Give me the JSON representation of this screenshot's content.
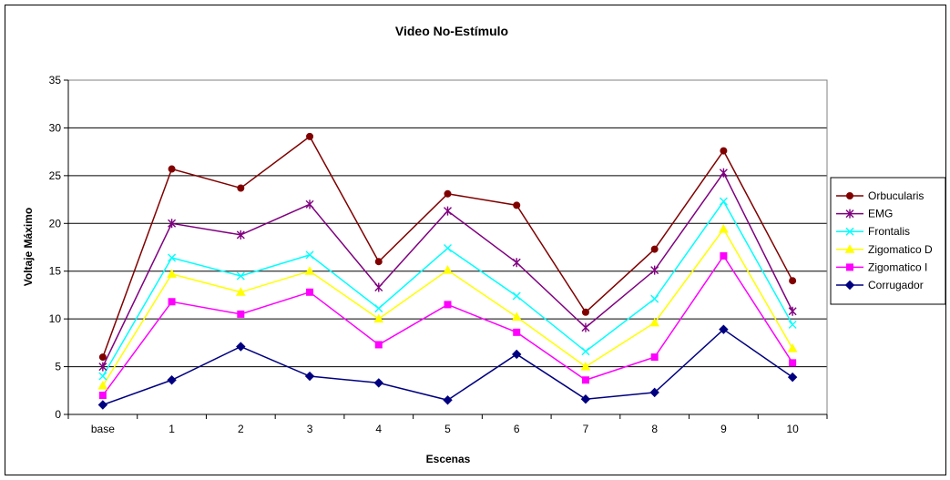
{
  "chart_data": {
    "type": "line",
    "title": "Video No-Estímulo",
    "xlabel": "Escenas",
    "ylabel": "Voltaje Máximo",
    "categories": [
      "base",
      "1",
      "2",
      "3",
      "4",
      "5",
      "6",
      "7",
      "8",
      "9",
      "10"
    ],
    "ylim": [
      0,
      35
    ],
    "yticks": [
      "0",
      "5",
      "10",
      "15",
      "20",
      "25",
      "30",
      "35"
    ],
    "grid": "horizontal",
    "legend_position": "right",
    "series": [
      {
        "name": "Orbucularis",
        "color": "#800000",
        "marker": "circle",
        "values": [
          6.0,
          25.7,
          23.7,
          29.1,
          16.0,
          23.1,
          21.9,
          10.7,
          17.3,
          27.6,
          14.0
        ]
      },
      {
        "name": "EMG",
        "color": "#800080",
        "marker": "asterisk",
        "values": [
          5.0,
          20.0,
          18.8,
          22.0,
          13.3,
          21.3,
          15.9,
          9.1,
          15.1,
          25.3,
          10.8
        ]
      },
      {
        "name": "Frontalis",
        "color": "#00FFFF",
        "marker": "x",
        "values": [
          4.0,
          16.4,
          14.5,
          16.7,
          11.1,
          17.4,
          12.4,
          6.6,
          12.1,
          22.3,
          9.4
        ]
      },
      {
        "name": "Zigomatico D",
        "color": "#FFFF00",
        "marker": "triangle",
        "values": [
          3.0,
          14.7,
          12.8,
          15.0,
          10.0,
          15.1,
          10.2,
          5.0,
          9.6,
          19.4,
          6.9
        ]
      },
      {
        "name": "Zigomatico I",
        "color": "#FF00FF",
        "marker": "square",
        "values": [
          2.0,
          11.8,
          10.5,
          12.8,
          7.3,
          11.5,
          8.6,
          3.6,
          6.0,
          16.6,
          5.4
        ]
      },
      {
        "name": "Corrugador",
        "color": "#000080",
        "marker": "diamond",
        "values": [
          1.0,
          3.6,
          7.1,
          4.0,
          3.3,
          1.5,
          6.3,
          1.6,
          2.3,
          8.9,
          3.9
        ]
      }
    ]
  }
}
